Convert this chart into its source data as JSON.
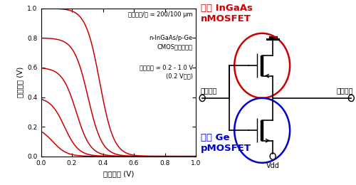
{
  "plot_xlim": [
    0,
    1
  ],
  "plot_ylim": [
    0,
    1
  ],
  "xlabel": "入力電圧 (V)",
  "ylabel": "出力電圧 (V)",
  "ann1": "ゲート長/幅 = 200/100 μm",
  "ann2": "n-InGaAs/p-Ge",
  "ann3": "CMOSインバータ",
  "ann4": "電源電圧 = 0.2 - 1.0 V",
  "ann5": "(0.2 V間隔)",
  "curve_color": "#cc0000",
  "vdd_values": [
    0.2,
    0.4,
    0.6,
    0.8,
    1.0
  ],
  "label_top_color": "#cc0000",
  "label_top_line1": "上層 InGaAs",
  "label_top_line2": "nMOSFET",
  "label_bot_color": "#0000cc",
  "label_bot_line1": "下層 Ge",
  "label_bot_line2": "pMOSFET",
  "label_input": "入力電圧",
  "label_output": "出力電圧",
  "label_vdd": "Vdd",
  "circle_top_color": "#cc0000",
  "circle_bot_color": "#0000cc"
}
